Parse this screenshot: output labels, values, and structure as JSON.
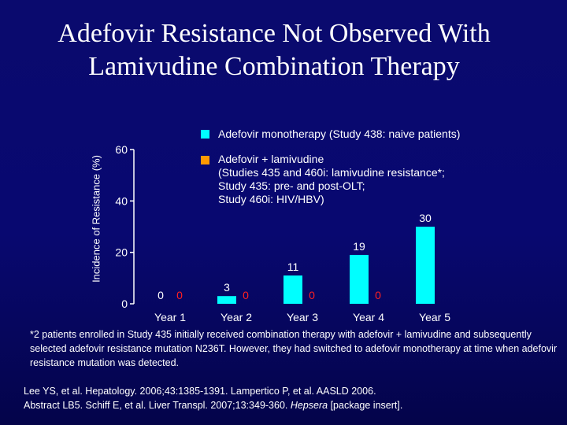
{
  "title_line1": "Adefovir Resistance Not Observed With",
  "title_line2": "Lamivudine Combination Therapy",
  "chart_data": {
    "type": "bar",
    "title": "Adefovir Resistance Not Observed With Lamivudine Combination Therapy",
    "ylabel": "Incidence of Resistance (%)",
    "xlabel": "",
    "ylim": [
      0,
      60
    ],
    "yticks": [
      0,
      20,
      40,
      60
    ],
    "categories": [
      "Year 1",
      "Year 2",
      "Year 3",
      "Year 4",
      "Year 5"
    ],
    "series": [
      {
        "name": "Adefovir monotherapy (Study 438: naive patients)",
        "color": "#00ffff",
        "values": [
          0,
          3,
          11,
          19,
          30
        ],
        "labels": [
          "0",
          "3",
          "11",
          "19",
          "30"
        ]
      },
      {
        "name": "Adefovir + lamivudine (Studies 435 and 460i: lamivudine resistance*; Study 435: pre- and post-OLT; Study 460i: HIV/HBV)",
        "color": "#ff9900",
        "label_color": "#ff2020",
        "values": [
          0,
          0,
          0,
          0,
          null
        ],
        "labels": [
          "0",
          "0",
          "0",
          "0",
          ""
        ]
      }
    ]
  },
  "legend": {
    "item1": "Adefovir monotherapy (Study 438: naive patients)",
    "item2_lines": [
      "Adefovir + lamivudine",
      "(Studies 435 and 460i: lamivudine resistance*;",
      "Study 435: pre- and post-OLT;",
      "Study 460i: HIV/HBV)"
    ]
  },
  "footnote": "*2 patients enrolled in Study 435 initially received combination therapy with adefovir + lamivudine and subsequently selected adefovir resistance mutation N236T. However, they had switched to adefovir monotherapy at time when adefovir resistance mutation was detected.",
  "refs": {
    "line1": "Lee YS, et al. Hepatology. 2006;43:1385-1391. Lampertico P, et al. AASLD 2006.",
    "line2_pre": "Abstract LB5. Schiff E, et al. Liver Transpl. 2007;13:349-360. ",
    "line2_italic": "Hepsera",
    "line2_post": " [package insert]."
  }
}
